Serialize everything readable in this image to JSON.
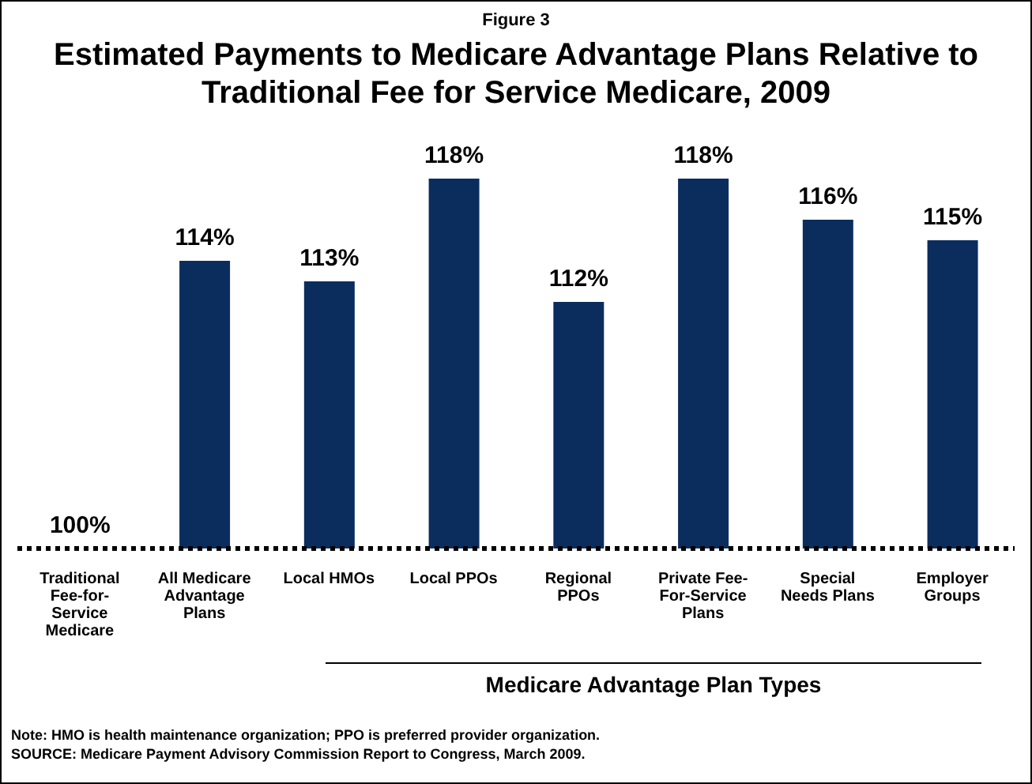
{
  "chart_data": {
    "type": "bar",
    "title": "Estimated Payments to Medicare Advantage Plans Relative to Traditional Fee for Service Medicare, 2009",
    "categories": [
      "Traditional Fee-for-Service Medicare",
      "All Medicare Advantage Plans",
      "Local HMOs",
      "Local PPOs",
      "Regional PPOs",
      "Private Fee-For-Service Plans",
      "Special Needs Plans",
      "Employer Groups"
    ],
    "values": [
      100,
      114,
      113,
      118,
      112,
      118,
      116,
      115
    ],
    "value_labels": [
      "100%",
      "114%",
      "113%",
      "118%",
      "112%",
      "118%",
      "116%",
      "115%"
    ],
    "color": "#0b2d5e",
    "ylim": [
      100,
      118
    ],
    "tick_labels": "x",
    "grid": false,
    "legend": false,
    "ref_lines": [
      {
        "axis": "y",
        "value": 100,
        "color": "#000000",
        "line_style": "dotted"
      }
    ],
    "annotations": [
      "Figure 3",
      "Medicare Advantage Plan Types",
      "Note: HMO is health maintenance organization; PPO is preferred provider organization.",
      "SOURCE: Medicare Payment Advisory Commission Report to Congress, March 2009."
    ]
  }
}
